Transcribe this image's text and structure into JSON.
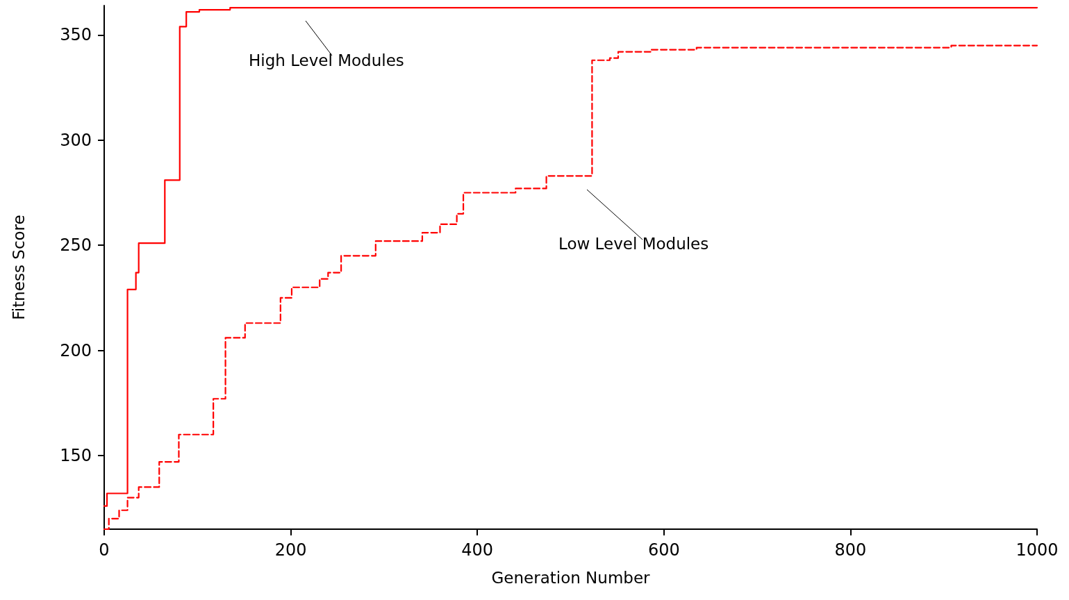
{
  "chart_data": {
    "type": "step",
    "xlabel": "Generation Number",
    "ylabel": "Fitness Score",
    "xlim": [
      0,
      1000
    ],
    "xticks": [
      0,
      200,
      400,
      600,
      800,
      1000
    ],
    "ylim": [
      115,
      364
    ],
    "yticks": [
      150,
      200,
      250,
      300,
      350
    ],
    "grid": false,
    "marker": "none",
    "series": [
      {
        "color": "#ff0000",
        "line_style": "solid",
        "x": [
          0,
          3,
          25,
          25,
          34,
          37,
          65,
          65,
          81,
          88,
          102,
          135,
          1000
        ],
        "values": [
          126,
          132,
          137,
          229,
          237,
          251,
          261,
          281,
          354,
          361,
          362,
          363,
          363
        ]
      },
      {
        "color": "#ff0000",
        "line_style": "dashed",
        "x": [
          0,
          5,
          16,
          25,
          37,
          59,
          80,
          117,
          130,
          151,
          189,
          201,
          231,
          240,
          254,
          291,
          341,
          360,
          378,
          385,
          441,
          474,
          523,
          542,
          551,
          586,
          635,
          908,
          1000
        ],
        "values": [
          115,
          120,
          124,
          130,
          135,
          147,
          160,
          177,
          206,
          213,
          225,
          230,
          234,
          237,
          245,
          252,
          256,
          260,
          265,
          275,
          277,
          283,
          338,
          339,
          342,
          343,
          344,
          345,
          345
        ]
      }
    ],
    "annotations": [
      "High Level Modules",
      "Low Level Modules"
    ]
  }
}
